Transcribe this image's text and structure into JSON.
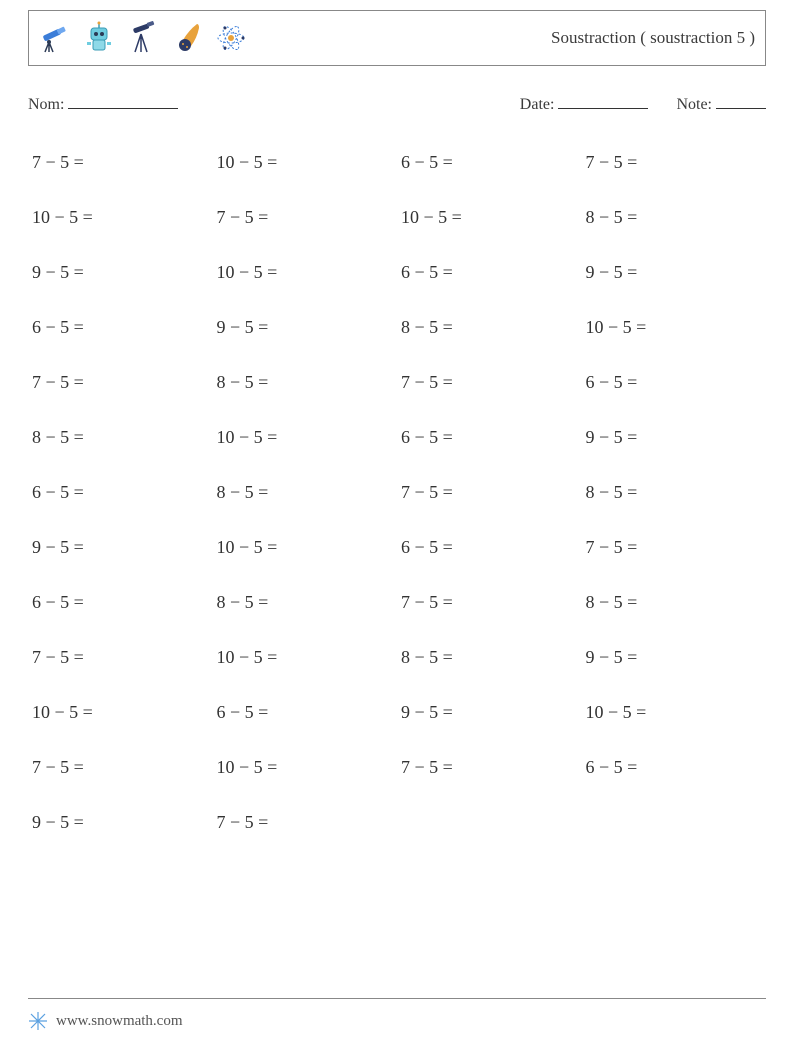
{
  "header": {
    "title": "Soustraction ( soustraction 5 )",
    "icons": [
      "telescope",
      "robot",
      "tripod-telescope",
      "comet",
      "atom"
    ]
  },
  "meta": {
    "name_label": "Nom:",
    "date_label": "Date:",
    "note_label": "Note:",
    "name_underline_width": 110,
    "date_underline_width": 90,
    "note_underline_width": 50
  },
  "worksheet": {
    "operator": "−",
    "columns": 4,
    "problems": [
      [
        7,
        5
      ],
      [
        10,
        5
      ],
      [
        6,
        5
      ],
      [
        7,
        5
      ],
      [
        10,
        5
      ],
      [
        7,
        5
      ],
      [
        10,
        5
      ],
      [
        8,
        5
      ],
      [
        9,
        5
      ],
      [
        10,
        5
      ],
      [
        6,
        5
      ],
      [
        9,
        5
      ],
      [
        6,
        5
      ],
      [
        9,
        5
      ],
      [
        8,
        5
      ],
      [
        10,
        5
      ],
      [
        7,
        5
      ],
      [
        8,
        5
      ],
      [
        7,
        5
      ],
      [
        6,
        5
      ],
      [
        8,
        5
      ],
      [
        10,
        5
      ],
      [
        6,
        5
      ],
      [
        9,
        5
      ],
      [
        6,
        5
      ],
      [
        8,
        5
      ],
      [
        7,
        5
      ],
      [
        8,
        5
      ],
      [
        9,
        5
      ],
      [
        10,
        5
      ],
      [
        6,
        5
      ],
      [
        7,
        5
      ],
      [
        6,
        5
      ],
      [
        8,
        5
      ],
      [
        7,
        5
      ],
      [
        8,
        5
      ],
      [
        7,
        5
      ],
      [
        10,
        5
      ],
      [
        8,
        5
      ],
      [
        9,
        5
      ],
      [
        10,
        5
      ],
      [
        6,
        5
      ],
      [
        9,
        5
      ],
      [
        10,
        5
      ],
      [
        7,
        5
      ],
      [
        10,
        5
      ],
      [
        7,
        5
      ],
      [
        6,
        5
      ],
      [
        9,
        5
      ],
      [
        7,
        5
      ]
    ]
  },
  "footer": {
    "site": "www.snowmath.com"
  },
  "colors": {
    "border": "#888888",
    "text": "#333333",
    "icon_blue": "#3b7dd8",
    "icon_teal": "#4aa8c9",
    "icon_dark": "#2b3a55",
    "icon_orange": "#e8a23c",
    "icon_navy": "#2d3b66"
  }
}
